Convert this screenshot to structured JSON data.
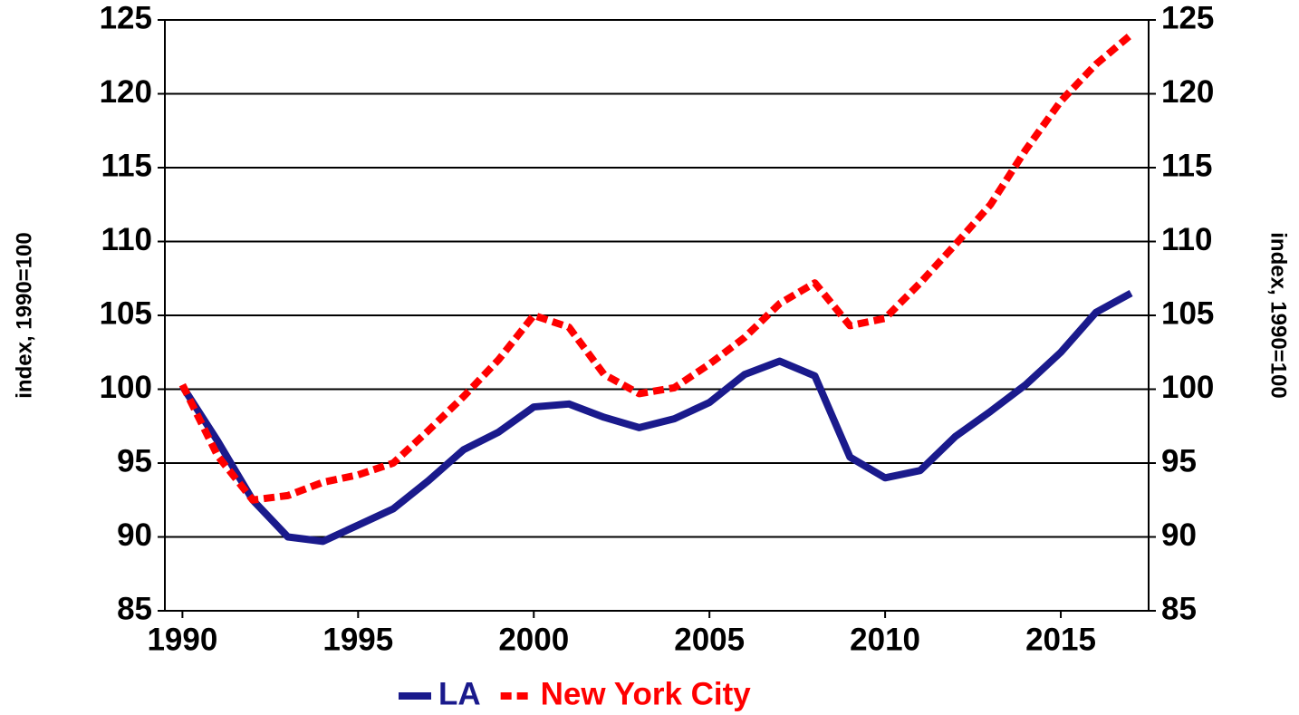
{
  "chart_data": {
    "type": "line",
    "y_label": "index, 1990=100",
    "y2_label": "index, 1990=100",
    "x": [
      1990,
      1991,
      1992,
      1993,
      1994,
      1995,
      1996,
      1997,
      1998,
      1999,
      2000,
      2001,
      2002,
      2003,
      2004,
      2005,
      2006,
      2007,
      2008,
      2009,
      2010,
      2011,
      2012,
      2013,
      2014,
      2015,
      2016,
      2017
    ],
    "xlim": [
      1989.5,
      2017.5
    ],
    "xticks": [
      1990,
      1995,
      2000,
      2005,
      2010,
      2015
    ],
    "ylim": [
      85,
      125
    ],
    "yticks": [
      85,
      90,
      95,
      100,
      105,
      110,
      115,
      120,
      125
    ],
    "y2lim": [
      85,
      125
    ],
    "y2ticks": [
      85,
      90,
      95,
      100,
      105,
      110,
      115,
      120,
      125
    ],
    "grid": true,
    "legend": "bottom",
    "series": [
      {
        "name": "LA",
        "color": "#1a1a8c",
        "line_style": "solid",
        "values": [
          100.2,
          96.5,
          92.5,
          90.0,
          89.7,
          90.8,
          91.9,
          93.8,
          95.9,
          97.1,
          98.8,
          99.0,
          98.1,
          97.4,
          98.0,
          99.1,
          101.0,
          101.9,
          100.9,
          95.4,
          94.0,
          94.5,
          96.8,
          98.5,
          100.3,
          102.5,
          105.2,
          106.5
        ]
      },
      {
        "name": "New York City",
        "color": "#ff0000",
        "line_style": "dashed",
        "values": [
          100.3,
          95.5,
          92.5,
          92.8,
          93.7,
          94.2,
          95.0,
          97.2,
          99.5,
          102.0,
          105.0,
          104.2,
          101.0,
          99.7,
          100.1,
          101.7,
          103.5,
          105.8,
          107.2,
          104.3,
          104.8,
          107.2,
          109.8,
          112.5,
          116.2,
          119.5,
          122.0,
          124.0
        ]
      }
    ]
  }
}
